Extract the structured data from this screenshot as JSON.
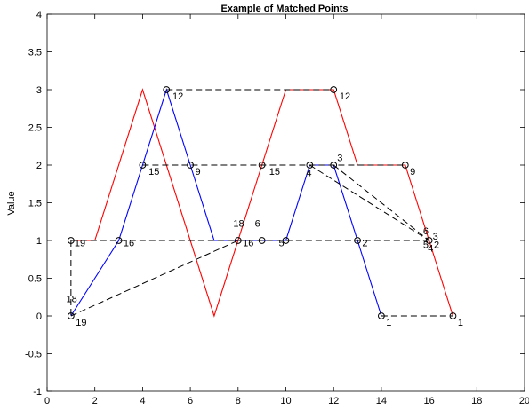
{
  "chart_data": {
    "type": "line",
    "title": "Example of Matched Points",
    "xlabel": "",
    "ylabel": "Value",
    "xlim": [
      0,
      20
    ],
    "ylim": [
      -1,
      4
    ],
    "xticks": [
      0,
      2,
      4,
      6,
      8,
      10,
      12,
      14,
      16,
      18,
      20
    ],
    "yticks": [
      -1,
      -0.5,
      0,
      0.5,
      1,
      1.5,
      2,
      2.5,
      3,
      3.5,
      4
    ],
    "xtick_labels": [
      "0",
      "2",
      "4",
      "6",
      "8",
      "10",
      "12",
      "14",
      "16",
      "18",
      "20"
    ],
    "ytick_labels": [
      "-1",
      "-0.5",
      "0",
      "0.5",
      "1",
      "1.5",
      "2",
      "2.5",
      "3",
      "3.5",
      "4"
    ],
    "grid": false,
    "series": [
      {
        "color": "#ff0000",
        "x": [
          1,
          2,
          4,
          7,
          9,
          10,
          12,
          13,
          15,
          16,
          17
        ],
        "y": [
          1,
          1,
          3,
          0,
          2,
          3,
          3,
          2,
          2,
          1,
          0
        ]
      },
      {
        "color": "#0000ff",
        "x": [
          1,
          1,
          3,
          4,
          5,
          6,
          7,
          8,
          9,
          10,
          11,
          12,
          13,
          14
        ],
        "y": [
          0,
          0,
          1,
          2,
          3,
          2,
          1,
          1,
          1,
          1,
          2,
          2,
          1,
          0
        ]
      }
    ],
    "markers": [
      {
        "x": 1,
        "y": 1
      },
      {
        "x": 1,
        "y": 0
      },
      {
        "x": 3,
        "y": 1
      },
      {
        "x": 4,
        "y": 2
      },
      {
        "x": 5,
        "y": 3
      },
      {
        "x": 6,
        "y": 2
      },
      {
        "x": 8,
        "y": 1
      },
      {
        "x": 9,
        "y": 2
      },
      {
        "x": 9,
        "y": 1
      },
      {
        "x": 10,
        "y": 1
      },
      {
        "x": 11,
        "y": 2
      },
      {
        "x": 12,
        "y": 2
      },
      {
        "x": 12,
        "y": 3
      },
      {
        "x": 13,
        "y": 1
      },
      {
        "x": 14,
        "y": 0
      },
      {
        "x": 15,
        "y": 2
      },
      {
        "x": 16,
        "y": 1
      },
      {
        "x": 17,
        "y": 0
      }
    ],
    "matches": [
      {
        "x1": 1,
        "y1": 1,
        "x2": 1,
        "y2": 0
      },
      {
        "x1": 1,
        "y1": 0,
        "x2": 8,
        "y2": 1
      },
      {
        "x1": 1,
        "y1": 1,
        "x2": 16,
        "y2": 1
      },
      {
        "x1": 4,
        "y1": 2,
        "x2": 15,
        "y2": 2
      },
      {
        "x1": 5,
        "y1": 3,
        "x2": 12,
        "y2": 3
      },
      {
        "x1": 11,
        "y1": 2,
        "x2": 16,
        "y2": 1
      },
      {
        "x1": 12,
        "y1": 2,
        "x2": 16,
        "y2": 1
      },
      {
        "x1": 14,
        "y1": 0,
        "x2": 17,
        "y2": 0
      }
    ],
    "point_labels": [
      {
        "text": "19",
        "x": 1.15,
        "y": 0.97,
        "color": "#000000"
      },
      {
        "text": "18",
        "x": 0.8,
        "y": 0.23,
        "color": "#000000"
      },
      {
        "text": "19",
        "x": 1.2,
        "y": -0.08,
        "color": "#000000"
      },
      {
        "text": "16",
        "x": 3.2,
        "y": 0.97,
        "color": "#000000"
      },
      {
        "text": "15",
        "x": 4.25,
        "y": 1.92,
        "color": "#000000"
      },
      {
        "text": "12",
        "x": 5.25,
        "y": 2.92,
        "color": "#000000"
      },
      {
        "text": "9",
        "x": 6.2,
        "y": 1.92,
        "color": "#000000"
      },
      {
        "text": "18",
        "x": 7.8,
        "y": 1.23,
        "color": "#000000"
      },
      {
        "text": "16",
        "x": 8.2,
        "y": 0.97,
        "color": "#000000"
      },
      {
        "text": "6",
        "x": 8.7,
        "y": 1.23,
        "color": "#000000"
      },
      {
        "text": "15",
        "x": 9.3,
        "y": 1.92,
        "color": "#000000"
      },
      {
        "text": "5",
        "x": 9.7,
        "y": 0.97,
        "color": "#000000"
      },
      {
        "text": "4",
        "x": 10.85,
        "y": 1.9,
        "color": "#000000"
      },
      {
        "text": "3",
        "x": 12.15,
        "y": 2.1,
        "color": "#000000"
      },
      {
        "text": "12",
        "x": 12.25,
        "y": 2.92,
        "color": "#000000"
      },
      {
        "text": "2",
        "x": 13.2,
        "y": 0.97,
        "color": "#000000"
      },
      {
        "text": "1",
        "x": 14.2,
        "y": -0.08,
        "color": "#000000"
      },
      {
        "text": "9",
        "x": 15.2,
        "y": 1.92,
        "color": "#000000"
      },
      {
        "text": "6",
        "x": 15.75,
        "y": 1.13,
        "color": "#ff0000"
      },
      {
        "text": "3",
        "x": 16.15,
        "y": 1.06,
        "color": "#000000"
      },
      {
        "text": "5",
        "x": 15.75,
        "y": 0.95,
        "color": "#000000"
      },
      {
        "text": "4",
        "x": 15.95,
        "y": 0.9,
        "color": "#000000"
      },
      {
        "text": "2",
        "x": 16.2,
        "y": 0.95,
        "color": "#000000"
      },
      {
        "text": "1",
        "x": 17.2,
        "y": -0.08,
        "color": "#000000"
      }
    ]
  }
}
